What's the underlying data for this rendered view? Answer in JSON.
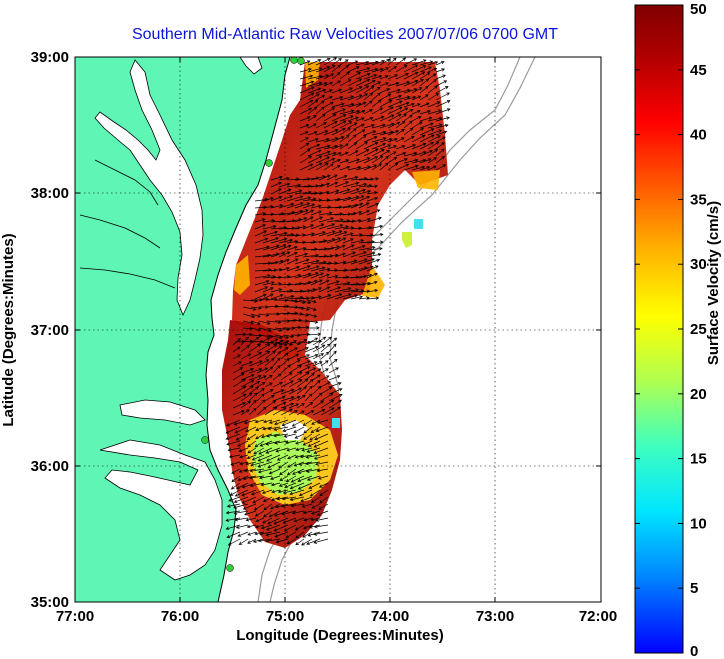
{
  "title": "Southern Mid-Atlantic Raw Velocities 2007/07/06 0700 GMT",
  "map": {
    "x_label": "Longitude (Degrees:Minutes)",
    "y_label": "Latitude (Degrees:Minutes)",
    "x_ticks": [
      "77:00",
      "76:00",
      "75:00",
      "74:00",
      "73:00",
      "72:00"
    ],
    "y_ticks": [
      "39:00",
      "38:00",
      "37:00",
      "36:00",
      "35:00"
    ],
    "lon_range": [
      -77,
      -72
    ],
    "lat_range": [
      35,
      39
    ],
    "grid": "dotted",
    "land_color": "#5ef5b5",
    "coast_color": "#000000",
    "isobath_color": "#9a9a9a",
    "site_marker_color": "#2ccf3a"
  },
  "colorbar": {
    "label": "Surface Velocity (cm/s)",
    "ticks": [
      "0",
      "5",
      "10",
      "15",
      "20",
      "25",
      "30",
      "35",
      "40",
      "45",
      "50"
    ],
    "range": [
      0,
      50
    ],
    "colormap": [
      "#0000ff",
      "#00b4ff",
      "#00ffff",
      "#7fff7f",
      "#ffff00",
      "#ffb000",
      "#ff5000",
      "#ff0000",
      "#a00000",
      "#800000"
    ]
  }
}
